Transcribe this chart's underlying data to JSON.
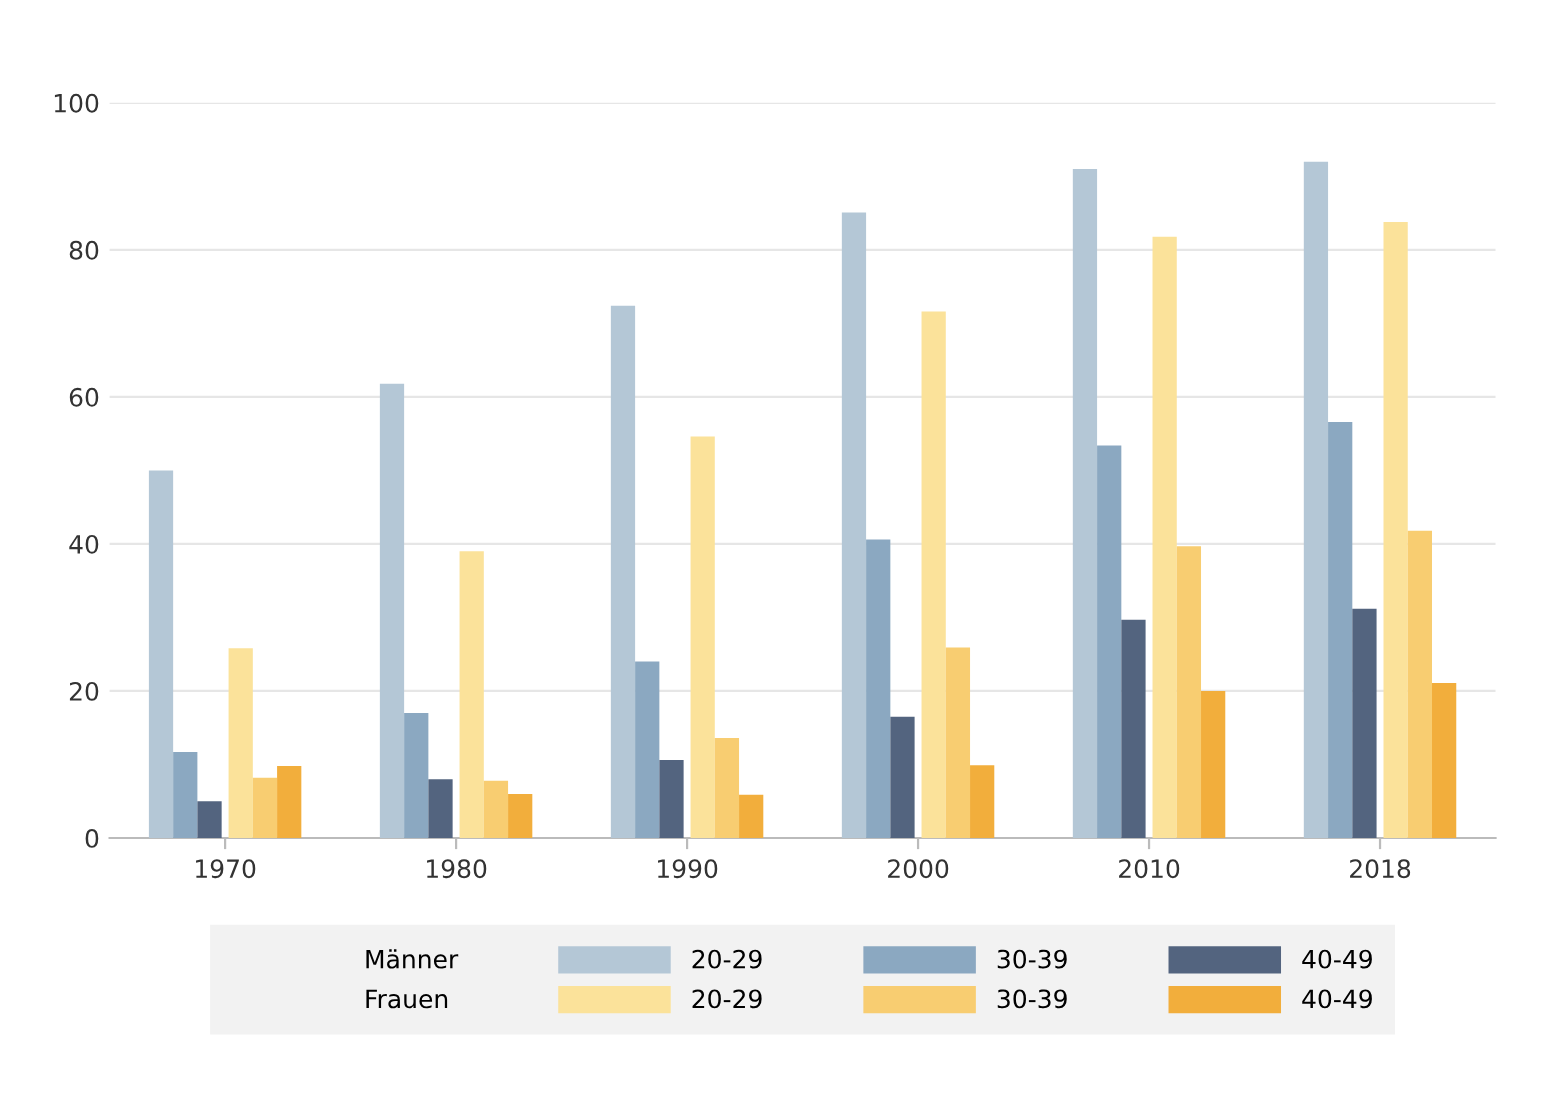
{
  "chart_data": {
    "type": "bar",
    "categories": [
      "1970",
      "1980",
      "1990",
      "2000",
      "2010",
      "2018"
    ],
    "series": [
      {
        "name": "20-29",
        "color": "#b4c7d6",
        "values": [
          50,
          61.8,
          72.4,
          85.1,
          91,
          92
        ]
      },
      {
        "name": "30-39",
        "color": "#8ba8c1",
        "values": [
          11.7,
          17,
          24,
          40.6,
          53.4,
          56.6
        ]
      },
      {
        "name": "40-49",
        "color": "#53647f",
        "values": [
          5,
          8,
          10.6,
          16.5,
          29.7,
          31.2
        ]
      },
      {
        "name": "20-29",
        "color": "#fbe29a",
        "values": [
          25.8,
          39,
          54.6,
          71.6,
          81.8,
          83.8
        ]
      },
      {
        "name": "30-39",
        "color": "#f8cd71",
        "values": [
          8.2,
          7.8,
          13.6,
          25.9,
          39.7,
          41.8
        ]
      },
      {
        "name": "40-49",
        "color": "#f2ae3c",
        "values": [
          9.8,
          6,
          5.9,
          9.9,
          20,
          21.1
        ]
      }
    ],
    "annotations": [
      "Männer",
      "Frauen"
    ],
    "ylim": [
      0,
      100
    ],
    "yticks": [
      0,
      20,
      40,
      60,
      80,
      100
    ],
    "grid": "y",
    "legend": "bottom"
  }
}
